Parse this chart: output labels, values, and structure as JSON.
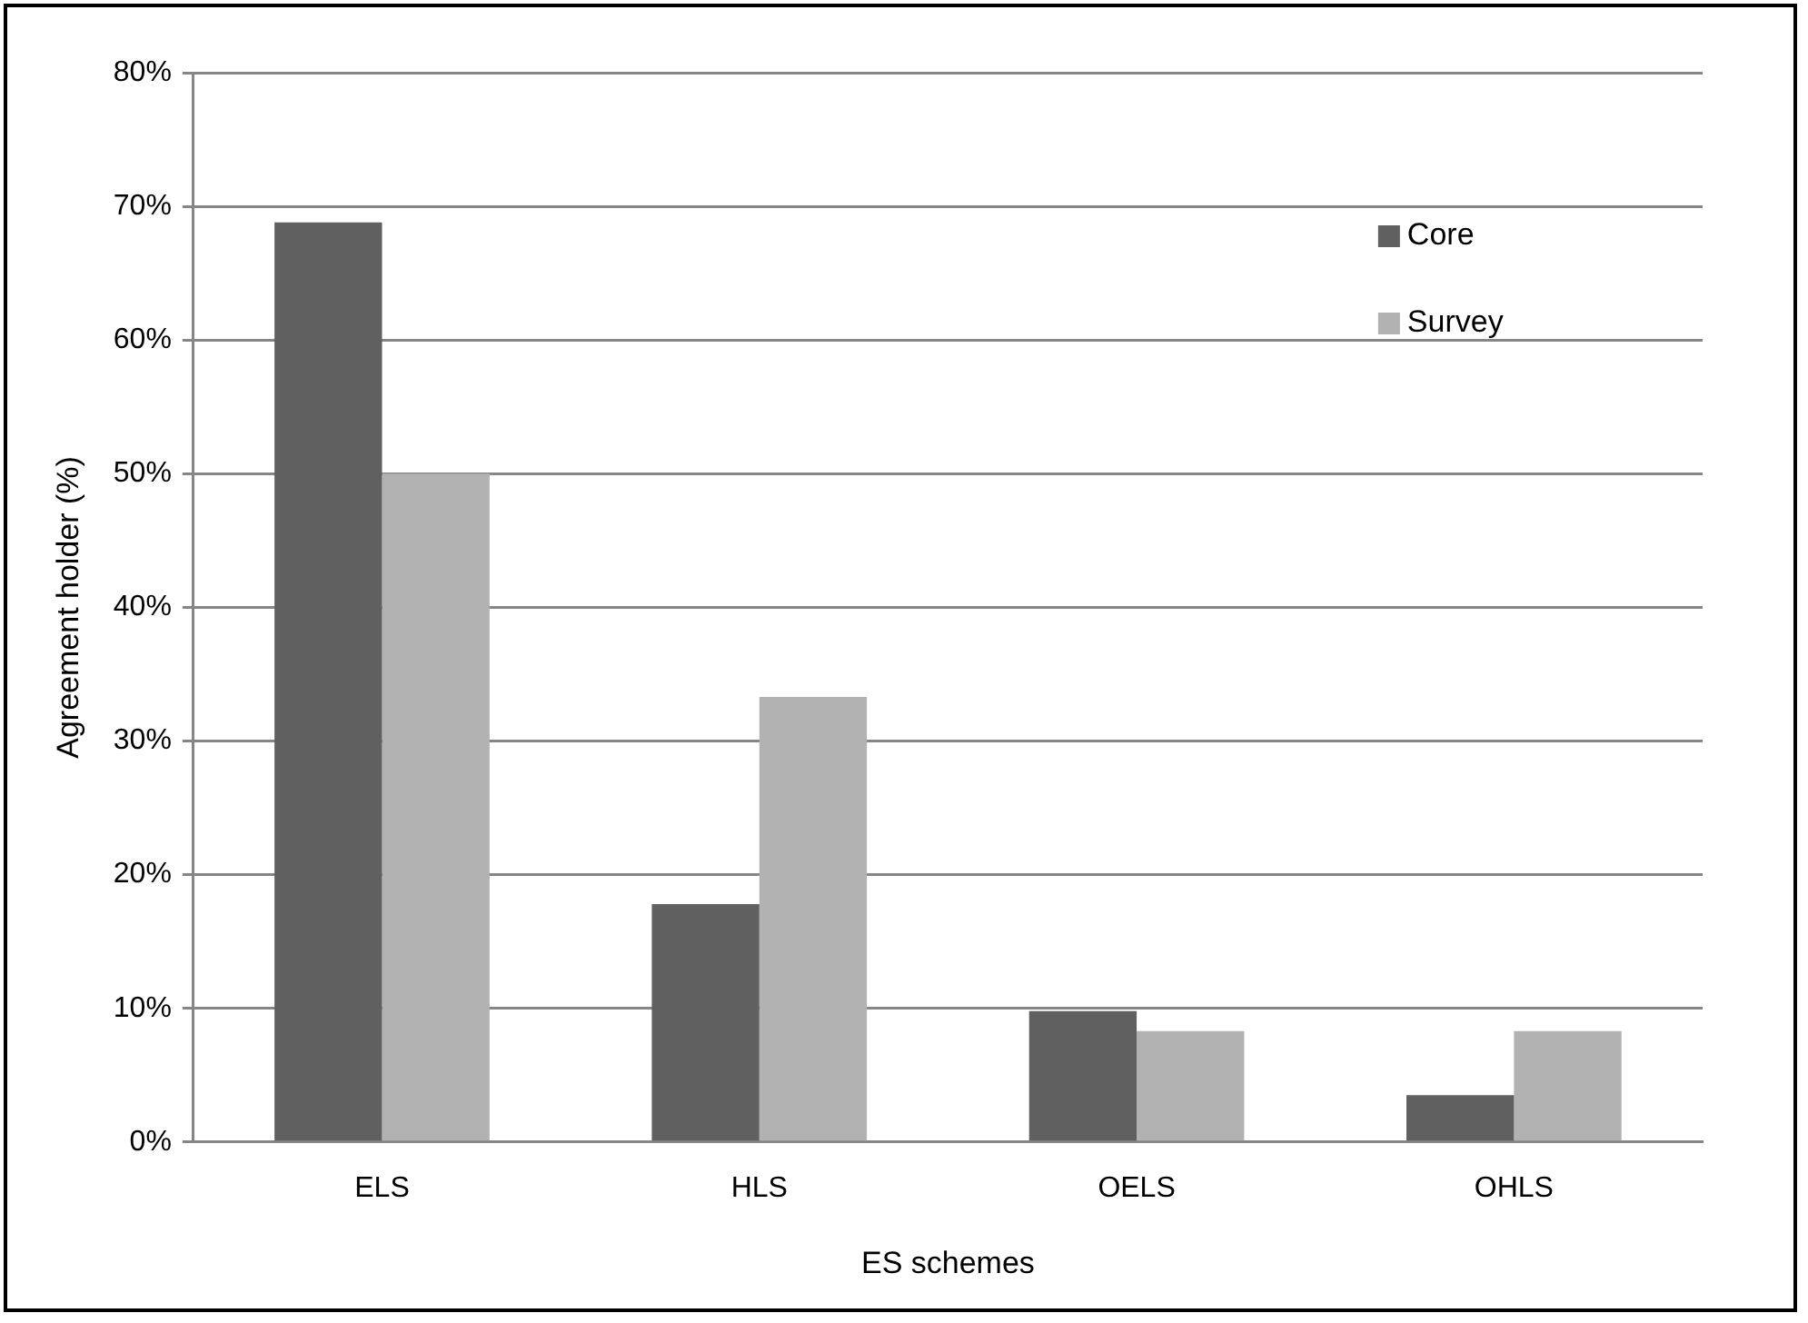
{
  "chart_data": {
    "type": "bar",
    "xlabel": "ES schemes",
    "ylabel": "Agreement holder (%)",
    "categories": [
      "ELS",
      "HLS",
      "OELS",
      "OHLS"
    ],
    "series": [
      {
        "name": "Core",
        "color": "#606060",
        "values": [
          68.8,
          17.8,
          9.8,
          3.5
        ]
      },
      {
        "name": "Survey",
        "color": "#b2b2b2",
        "values": [
          50,
          33.3,
          8.3,
          8.3
        ]
      }
    ],
    "ylim": [
      0,
      80
    ],
    "yticks": [
      {
        "value": 0,
        "label": "0%"
      },
      {
        "value": 10,
        "label": "10%"
      },
      {
        "value": 20,
        "label": "20%"
      },
      {
        "value": 30,
        "label": "30%"
      },
      {
        "value": 40,
        "label": "40%"
      },
      {
        "value": 50,
        "label": "50%"
      },
      {
        "value": 60,
        "label": "60%"
      },
      {
        "value": 70,
        "label": "70%"
      },
      {
        "value": 80,
        "label": "80%"
      }
    ],
    "grid": "y",
    "legend": "top right"
  }
}
